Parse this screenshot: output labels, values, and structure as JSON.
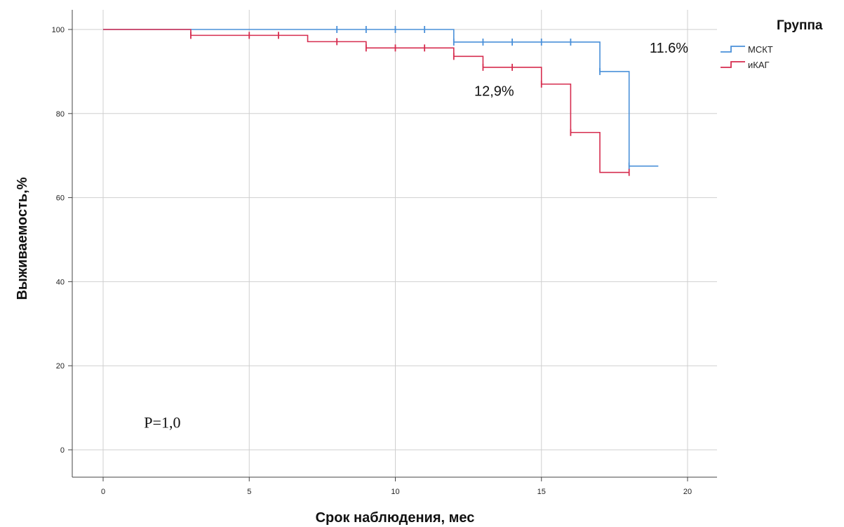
{
  "chart_data": {
    "type": "line",
    "subtype": "kaplan-meier-step",
    "title": "",
    "xlabel": "Срок наблюдения, мес",
    "ylabel": "Выживаемость,%",
    "xlim": [
      0,
      20
    ],
    "ylim": [
      0,
      100
    ],
    "xticks": [
      0,
      5,
      10,
      15,
      20
    ],
    "yticks": [
      0,
      20,
      40,
      60,
      80,
      100
    ],
    "grid": true,
    "legend": {
      "title": "Группа",
      "position": "top-right"
    },
    "series": [
      {
        "name": "МСКТ",
        "color": "#4a90d9",
        "steps": [
          [
            0,
            100
          ],
          [
            12,
            97
          ],
          [
            17,
            90
          ],
          [
            18,
            67.5
          ]
        ],
        "x_end": 19,
        "censored": [
          [
            8,
            100
          ],
          [
            9,
            100
          ],
          [
            10,
            100
          ],
          [
            11,
            100
          ],
          [
            12,
            97
          ],
          [
            13,
            97
          ],
          [
            14,
            97
          ],
          [
            15,
            97
          ],
          [
            16,
            97
          ],
          [
            17,
            90
          ],
          [
            18,
            67.5
          ]
        ]
      },
      {
        "name": "иКАГ",
        "color": "#d62d4f",
        "steps": [
          [
            0,
            100
          ],
          [
            3,
            98.6
          ],
          [
            7,
            97.1
          ],
          [
            9,
            95.6
          ],
          [
            12,
            93.6
          ],
          [
            13,
            91.0
          ],
          [
            15,
            87.0
          ],
          [
            16,
            75.5
          ],
          [
            17,
            66.0
          ]
        ],
        "x_end": 18,
        "censored": [
          [
            3,
            98.6
          ],
          [
            5,
            98.6
          ],
          [
            6,
            98.6
          ],
          [
            8,
            97.1
          ],
          [
            9,
            95.6
          ],
          [
            10,
            95.6
          ],
          [
            11,
            95.6
          ],
          [
            12,
            93.6
          ],
          [
            13,
            91.0
          ],
          [
            14,
            91.0
          ],
          [
            15,
            87.0
          ],
          [
            16,
            75.5
          ],
          [
            18,
            66.0
          ]
        ]
      }
    ],
    "annotations": [
      {
        "text": "11.6%",
        "x": 18.7,
        "y": 94.5
      },
      {
        "text": "12,9%",
        "x": 12.7,
        "y": 84.2
      },
      {
        "text": "P=1,0",
        "x": 1.4,
        "y": 5.3
      }
    ]
  }
}
